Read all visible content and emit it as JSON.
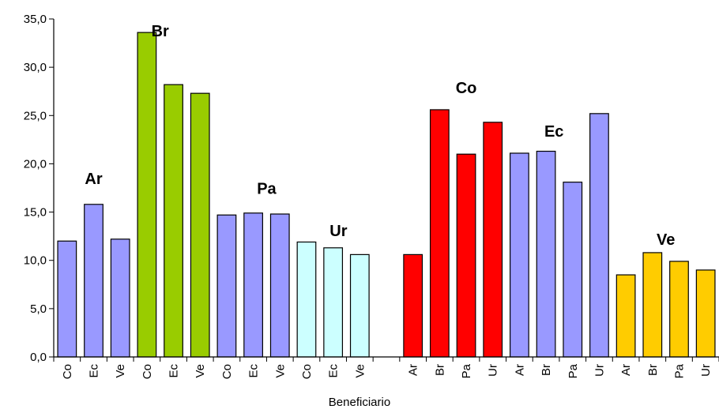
{
  "chart_data": {
    "type": "bar",
    "xlabel": "Beneficiario",
    "ylabel": "",
    "ylim": [
      0,
      35
    ],
    "ytick_values": [
      0,
      5,
      10,
      15,
      20,
      25,
      30,
      35
    ],
    "ytick_labels": [
      "0,0",
      "5,0",
      "10,0",
      "15,0",
      "20,0",
      "25,0",
      "30,0",
      "35,0"
    ],
    "grid": false,
    "colors": {
      "default": "#9999ff",
      "green": "#99cc00",
      "cyan": "#ccffff",
      "red": "#ff0000",
      "yellow": "#ffcc00"
    },
    "categories": [
      "Co",
      "Ec",
      "Ve",
      "Co",
      "Ec",
      "Ve",
      "Co",
      "Ec",
      "Ve",
      "Co",
      "Ec",
      "Ve",
      "",
      "Ar",
      "Br",
      "Pa",
      "Ur",
      "Ar",
      "Br",
      "Pa",
      "Ur",
      "Ar",
      "Br",
      "Pa",
      "Ur"
    ],
    "values": [
      12.0,
      15.8,
      12.2,
      33.6,
      28.2,
      27.3,
      14.7,
      14.9,
      14.8,
      11.9,
      11.3,
      10.6,
      null,
      10.6,
      25.6,
      21.0,
      24.3,
      21.1,
      21.3,
      18.1,
      25.2,
      8.5,
      10.8,
      9.9,
      9.0
    ],
    "bar_colors": [
      "default",
      "default",
      "default",
      "green",
      "green",
      "green",
      "default",
      "default",
      "default",
      "cyan",
      "cyan",
      "cyan",
      "default",
      "red",
      "red",
      "red",
      "red",
      "default",
      "default",
      "default",
      "default",
      "yellow",
      "yellow",
      "yellow",
      "yellow"
    ],
    "group_labels": [
      {
        "text": "Ar",
        "category_index": 1,
        "y": 17.9
      },
      {
        "text": "Br",
        "category_index": 3.5,
        "y": 33.2
      },
      {
        "text": "Pa",
        "category_index": 7.5,
        "y": 16.9
      },
      {
        "text": "Ur",
        "category_index": 10.2,
        "y": 12.5
      },
      {
        "text": "Co",
        "category_index": 15,
        "y": 27.3
      },
      {
        "text": "Ec",
        "category_index": 18.3,
        "y": 22.8
      },
      {
        "text": "Ve",
        "category_index": 22.5,
        "y": 11.6
      }
    ]
  }
}
